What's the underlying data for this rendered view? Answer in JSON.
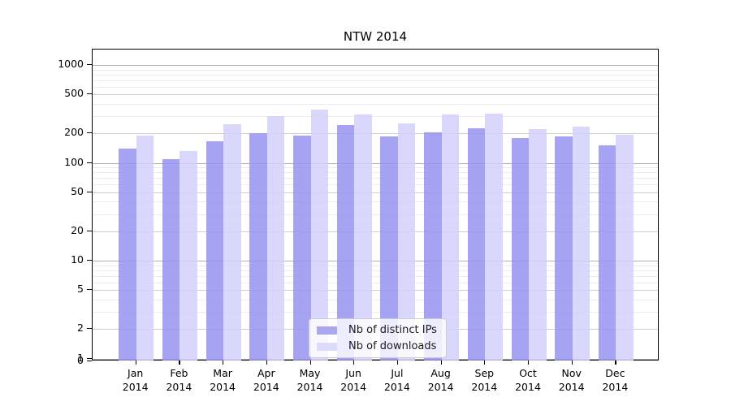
{
  "title": "NTW 2014",
  "chart_data": {
    "type": "bar",
    "title": "NTW 2014",
    "scale": "log",
    "grid": true,
    "legend_position": "lower-center-inside",
    "categories": [
      "Jan 2014",
      "Feb 2014",
      "Mar 2014",
      "Apr 2014",
      "May 2014",
      "Jun 2014",
      "Jul 2014",
      "Aug 2014",
      "Sep 2014",
      "Oct 2014",
      "Nov 2014",
      "Dec 2014"
    ],
    "x_months": [
      "Jan",
      "Feb",
      "Mar",
      "Apr",
      "May",
      "Jun",
      "Jul",
      "Aug",
      "Sep",
      "Oct",
      "Nov",
      "Dec"
    ],
    "x_year": "2014",
    "series": [
      {
        "name": "Nb of distinct IPs",
        "color": "rgba(150,147,241,0.85)",
        "legend_color": "#a9a7ee",
        "values": [
          140,
          108,
          165,
          200,
          190,
          241,
          187,
          206,
          226,
          178,
          186,
          150
        ]
      },
      {
        "name": "Nb of downloads",
        "color": "rgba(210,208,250,0.85)",
        "legend_color": "#dcdbf9",
        "values": [
          190,
          132,
          250,
          300,
          348,
          314,
          252,
          311,
          318,
          220,
          236,
          193
        ]
      }
    ],
    "y_ticks": [
      0,
      1,
      2,
      5,
      10,
      20,
      50,
      100,
      200,
      500,
      1000
    ],
    "y_minor_gridlines": [
      3,
      4,
      6,
      7,
      8,
      9,
      30,
      40,
      60,
      70,
      80,
      90,
      300,
      400,
      600,
      700,
      800,
      900
    ],
    "ylim": [
      0,
      1436
    ],
    "xlabel": "",
    "ylabel": "",
    "colors": {
      "grid_major_decade": "#b0b0b0",
      "grid_major": "#cdcdcd",
      "grid_minor": "#ececec",
      "spine": "#000000"
    }
  }
}
